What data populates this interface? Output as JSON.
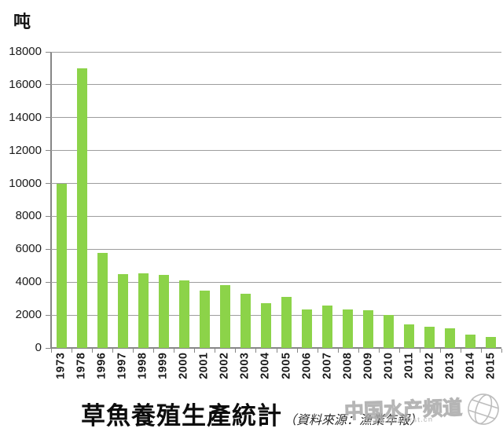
{
  "chart_data": {
    "type": "bar",
    "title": "草魚養殖生產統計",
    "source_note": "（資料來源：漁業年報）",
    "unit_label": "吨",
    "categories": [
      "1973",
      "1978",
      "1996",
      "1997",
      "1998",
      "1999",
      "2000",
      "2001",
      "2002",
      "2003",
      "2004",
      "2005",
      "2006",
      "2007",
      "2008",
      "2009",
      "2010",
      "2011",
      "2012",
      "2013",
      "2014",
      "2015"
    ],
    "values": [
      10000,
      17000,
      5800,
      4500,
      4550,
      4450,
      4100,
      3500,
      3800,
      3300,
      2700,
      3100,
      2350,
      2600,
      2350,
      2300,
      2000,
      1450,
      1300,
      1200,
      800,
      650
    ],
    "ylim": [
      0,
      18000
    ],
    "ytick_step": 2000,
    "grid": true,
    "legend": "none",
    "bar_color": "#8CD349",
    "grid_color": "#9d9d9d",
    "axis_color": "#868686"
  },
  "watermark": {
    "name": "中国水产频道",
    "url": "www.fishfirst.cn"
  }
}
